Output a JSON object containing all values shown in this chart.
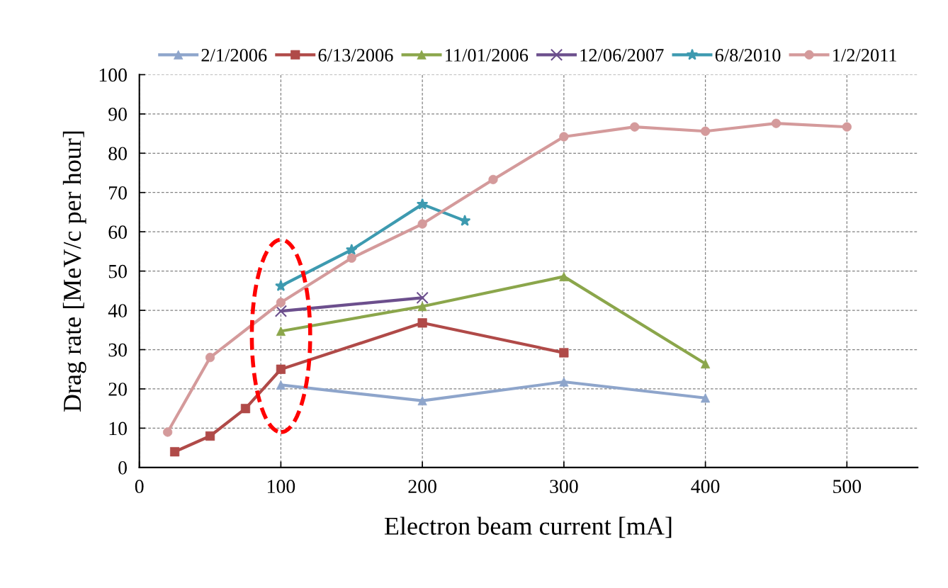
{
  "chart_data": {
    "type": "line",
    "xlabel": "Electron beam current [mA]",
    "ylabel": "Drag rate [MeV/c per hour]",
    "xlim": [
      0,
      550
    ],
    "xticks": [
      0,
      100,
      200,
      300,
      400,
      500
    ],
    "ylim": [
      0,
      100
    ],
    "yticks": [
      0,
      10,
      20,
      30,
      40,
      50,
      60,
      70,
      80,
      90,
      100
    ],
    "grid": true,
    "legend": "top",
    "line_style": "solid",
    "series": [
      {
        "name": "2/1/2006",
        "color": "#8ea5cb",
        "marker": "triangle",
        "x": [
          100,
          200,
          300,
          400
        ],
        "values": [
          21,
          17,
          21.8,
          17.7
        ]
      },
      {
        "name": "6/13/2006",
        "color": "#b04a48",
        "marker": "square",
        "x": [
          25,
          50,
          75,
          100,
          200,
          300
        ],
        "values": [
          4,
          8,
          15,
          25,
          36.8,
          29.2
        ]
      },
      {
        "name": "11/01/2006",
        "color": "#8ba64b",
        "marker": "triangle",
        "x": [
          100,
          200,
          300,
          400
        ],
        "values": [
          34.7,
          41,
          48.6,
          26.4
        ]
      },
      {
        "name": "12/06/2007",
        "color": "#6c4f8d",
        "marker": "cross",
        "x": [
          100,
          200
        ],
        "values": [
          39.8,
          43.2
        ]
      },
      {
        "name": "6/8/2010",
        "color": "#3d9ab0",
        "marker": "star",
        "x": [
          100,
          150,
          200,
          230
        ],
        "values": [
          46.2,
          55.4,
          67,
          62.8
        ]
      },
      {
        "name": "1/2/2011",
        "color": "#d49a9b",
        "marker": "circle",
        "x": [
          20,
          50,
          100,
          150,
          200,
          250,
          300,
          350,
          400,
          450,
          500
        ],
        "values": [
          9,
          28,
          42,
          53.3,
          62,
          73.3,
          84.2,
          86.7,
          85.6,
          87.6,
          86.7
        ]
      }
    ]
  }
}
